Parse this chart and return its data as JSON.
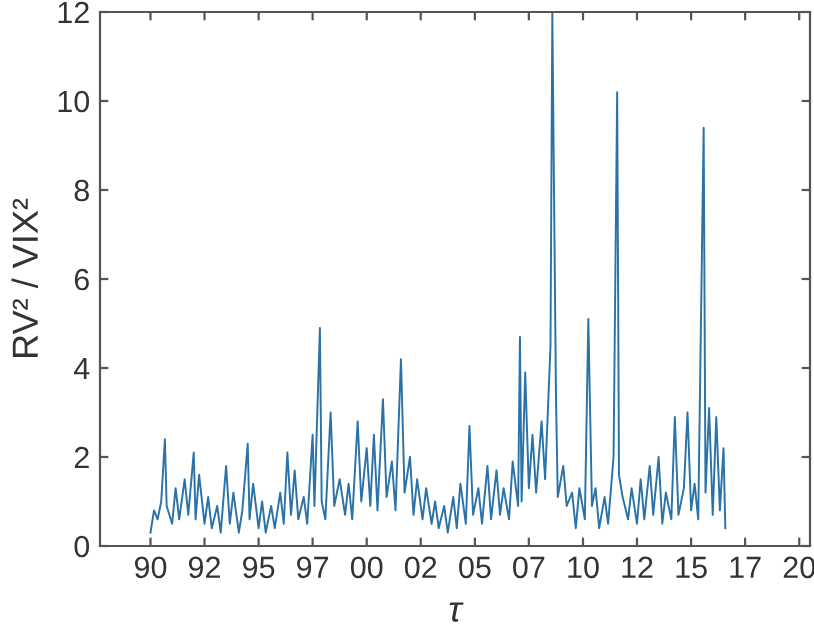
{
  "chart_data": {
    "type": "line",
    "xlabel": "τ",
    "ylabel": "RV² / VIX²",
    "xlim": [
      "1987-09",
      "2020-07"
    ],
    "ylim": [
      0,
      12
    ],
    "xticks": [
      {
        "value": "1990-01",
        "label": "90"
      },
      {
        "value": "1992-07",
        "label": "92"
      },
      {
        "value": "1995-01",
        "label": "95"
      },
      {
        "value": "1997-07",
        "label": "97"
      },
      {
        "value": "2000-01",
        "label": "00"
      },
      {
        "value": "2002-07",
        "label": "02"
      },
      {
        "value": "2005-01",
        "label": "05"
      },
      {
        "value": "2007-07",
        "label": "07"
      },
      {
        "value": "2010-01",
        "label": "10"
      },
      {
        "value": "2012-07",
        "label": "12"
      },
      {
        "value": "2015-01",
        "label": "15"
      },
      {
        "value": "2017-07",
        "label": "17"
      },
      {
        "value": "2020-01",
        "label": "20"
      }
    ],
    "yticks": [
      0,
      2,
      4,
      6,
      8,
      10,
      12
    ],
    "series": [
      {
        "color": "#2a72a8",
        "x": [
          "1990-01",
          "1990-03",
          "1990-05",
          "1990-07",
          "1990-09",
          "1990-10",
          "1991-01",
          "1991-03",
          "1991-05",
          "1991-08",
          "1991-10",
          "1992-01",
          "1992-02",
          "1992-04",
          "1992-07",
          "1992-09",
          "1992-11",
          "1993-02",
          "1993-04",
          "1993-07",
          "1993-09",
          "1993-11",
          "1994-02",
          "1994-04",
          "1994-07",
          "1994-08",
          "1994-10",
          "1995-01",
          "1995-03",
          "1995-05",
          "1995-08",
          "1995-10",
          "1996-01",
          "1996-03",
          "1996-05",
          "1996-07",
          "1996-09",
          "1996-11",
          "1997-02",
          "1997-04",
          "1997-07",
          "1997-08",
          "1997-11",
          "1997-12",
          "1998-02",
          "1998-05",
          "1998-07",
          "1998-10",
          "1999-01",
          "1999-03",
          "1999-05",
          "1999-08",
          "1999-10",
          "2000-01",
          "2000-03",
          "2000-05",
          "2000-07",
          "2000-10",
          "2000-12",
          "2001-03",
          "2001-05",
          "2001-08",
          "2001-10",
          "2002-01",
          "2002-03",
          "2002-05",
          "2002-08",
          "2002-10",
          "2003-01",
          "2003-03",
          "2003-05",
          "2003-08",
          "2003-10",
          "2004-01",
          "2004-03",
          "2004-05",
          "2004-08",
          "2004-10",
          "2004-12",
          "2005-03",
          "2005-05",
          "2005-08",
          "2005-10",
          "2006-01",
          "2006-03",
          "2006-05",
          "2006-08",
          "2006-10",
          "2007-01",
          "2007-02",
          "2007-03",
          "2007-05",
          "2007-07",
          "2007-09",
          "2007-11",
          "2008-02",
          "2008-04",
          "2008-07",
          "2008-08",
          "2008-10",
          "2008-11",
          "2009-02",
          "2009-04",
          "2009-07",
          "2009-09",
          "2009-11",
          "2010-02",
          "2010-04",
          "2010-06",
          "2010-08",
          "2010-10",
          "2011-01",
          "2011-03",
          "2011-06",
          "2011-08",
          "2011-09",
          "2011-11",
          "2012-02",
          "2012-04",
          "2012-07",
          "2012-09",
          "2012-11",
          "2013-02",
          "2013-04",
          "2013-07",
          "2013-09",
          "2013-11",
          "2014-02",
          "2014-04",
          "2014-06",
          "2014-09",
          "2014-11",
          "2015-01",
          "2015-03",
          "2015-05",
          "2015-08",
          "2015-09",
          "2015-11",
          "2016-01",
          "2016-03",
          "2016-05",
          "2016-07",
          "2016-08"
        ],
        "values": [
          0.3,
          0.8,
          0.6,
          1.0,
          2.4,
          0.9,
          0.5,
          1.3,
          0.6,
          1.5,
          0.7,
          2.1,
          0.6,
          1.6,
          0.5,
          1.1,
          0.4,
          0.9,
          0.3,
          1.8,
          0.5,
          1.2,
          0.3,
          0.8,
          2.3,
          0.6,
          1.4,
          0.4,
          1.0,
          0.3,
          0.9,
          0.4,
          1.2,
          0.5,
          2.1,
          0.7,
          1.7,
          0.6,
          1.1,
          0.5,
          2.5,
          0.9,
          4.9,
          1.0,
          0.6,
          3.0,
          0.9,
          1.5,
          0.7,
          1.4,
          0.6,
          2.8,
          1.0,
          2.2,
          0.9,
          2.5,
          0.8,
          3.3,
          1.1,
          1.9,
          0.8,
          4.2,
          1.2,
          2.0,
          0.7,
          1.5,
          0.6,
          1.3,
          0.5,
          1.0,
          0.4,
          0.9,
          0.3,
          1.1,
          0.4,
          1.4,
          0.5,
          2.7,
          0.7,
          1.3,
          0.5,
          1.8,
          0.6,
          1.7,
          0.7,
          1.3,
          0.6,
          1.9,
          0.9,
          4.7,
          1.0,
          3.9,
          1.3,
          2.5,
          1.2,
          2.8,
          1.5,
          4.5,
          12.0,
          3.4,
          1.1,
          1.8,
          0.9,
          1.2,
          0.4,
          1.3,
          0.6,
          5.1,
          0.9,
          1.3,
          0.4,
          1.1,
          0.5,
          2.0,
          10.2,
          1.6,
          1.1,
          0.6,
          1.3,
          0.5,
          1.5,
          0.6,
          1.8,
          0.7,
          2.0,
          0.5,
          1.2,
          0.6,
          2.9,
          0.7,
          1.3,
          3.0,
          0.8,
          1.4,
          0.6,
          9.4,
          1.2,
          3.1,
          0.7,
          2.9,
          0.8,
          2.2,
          0.4
        ]
      }
    ]
  }
}
